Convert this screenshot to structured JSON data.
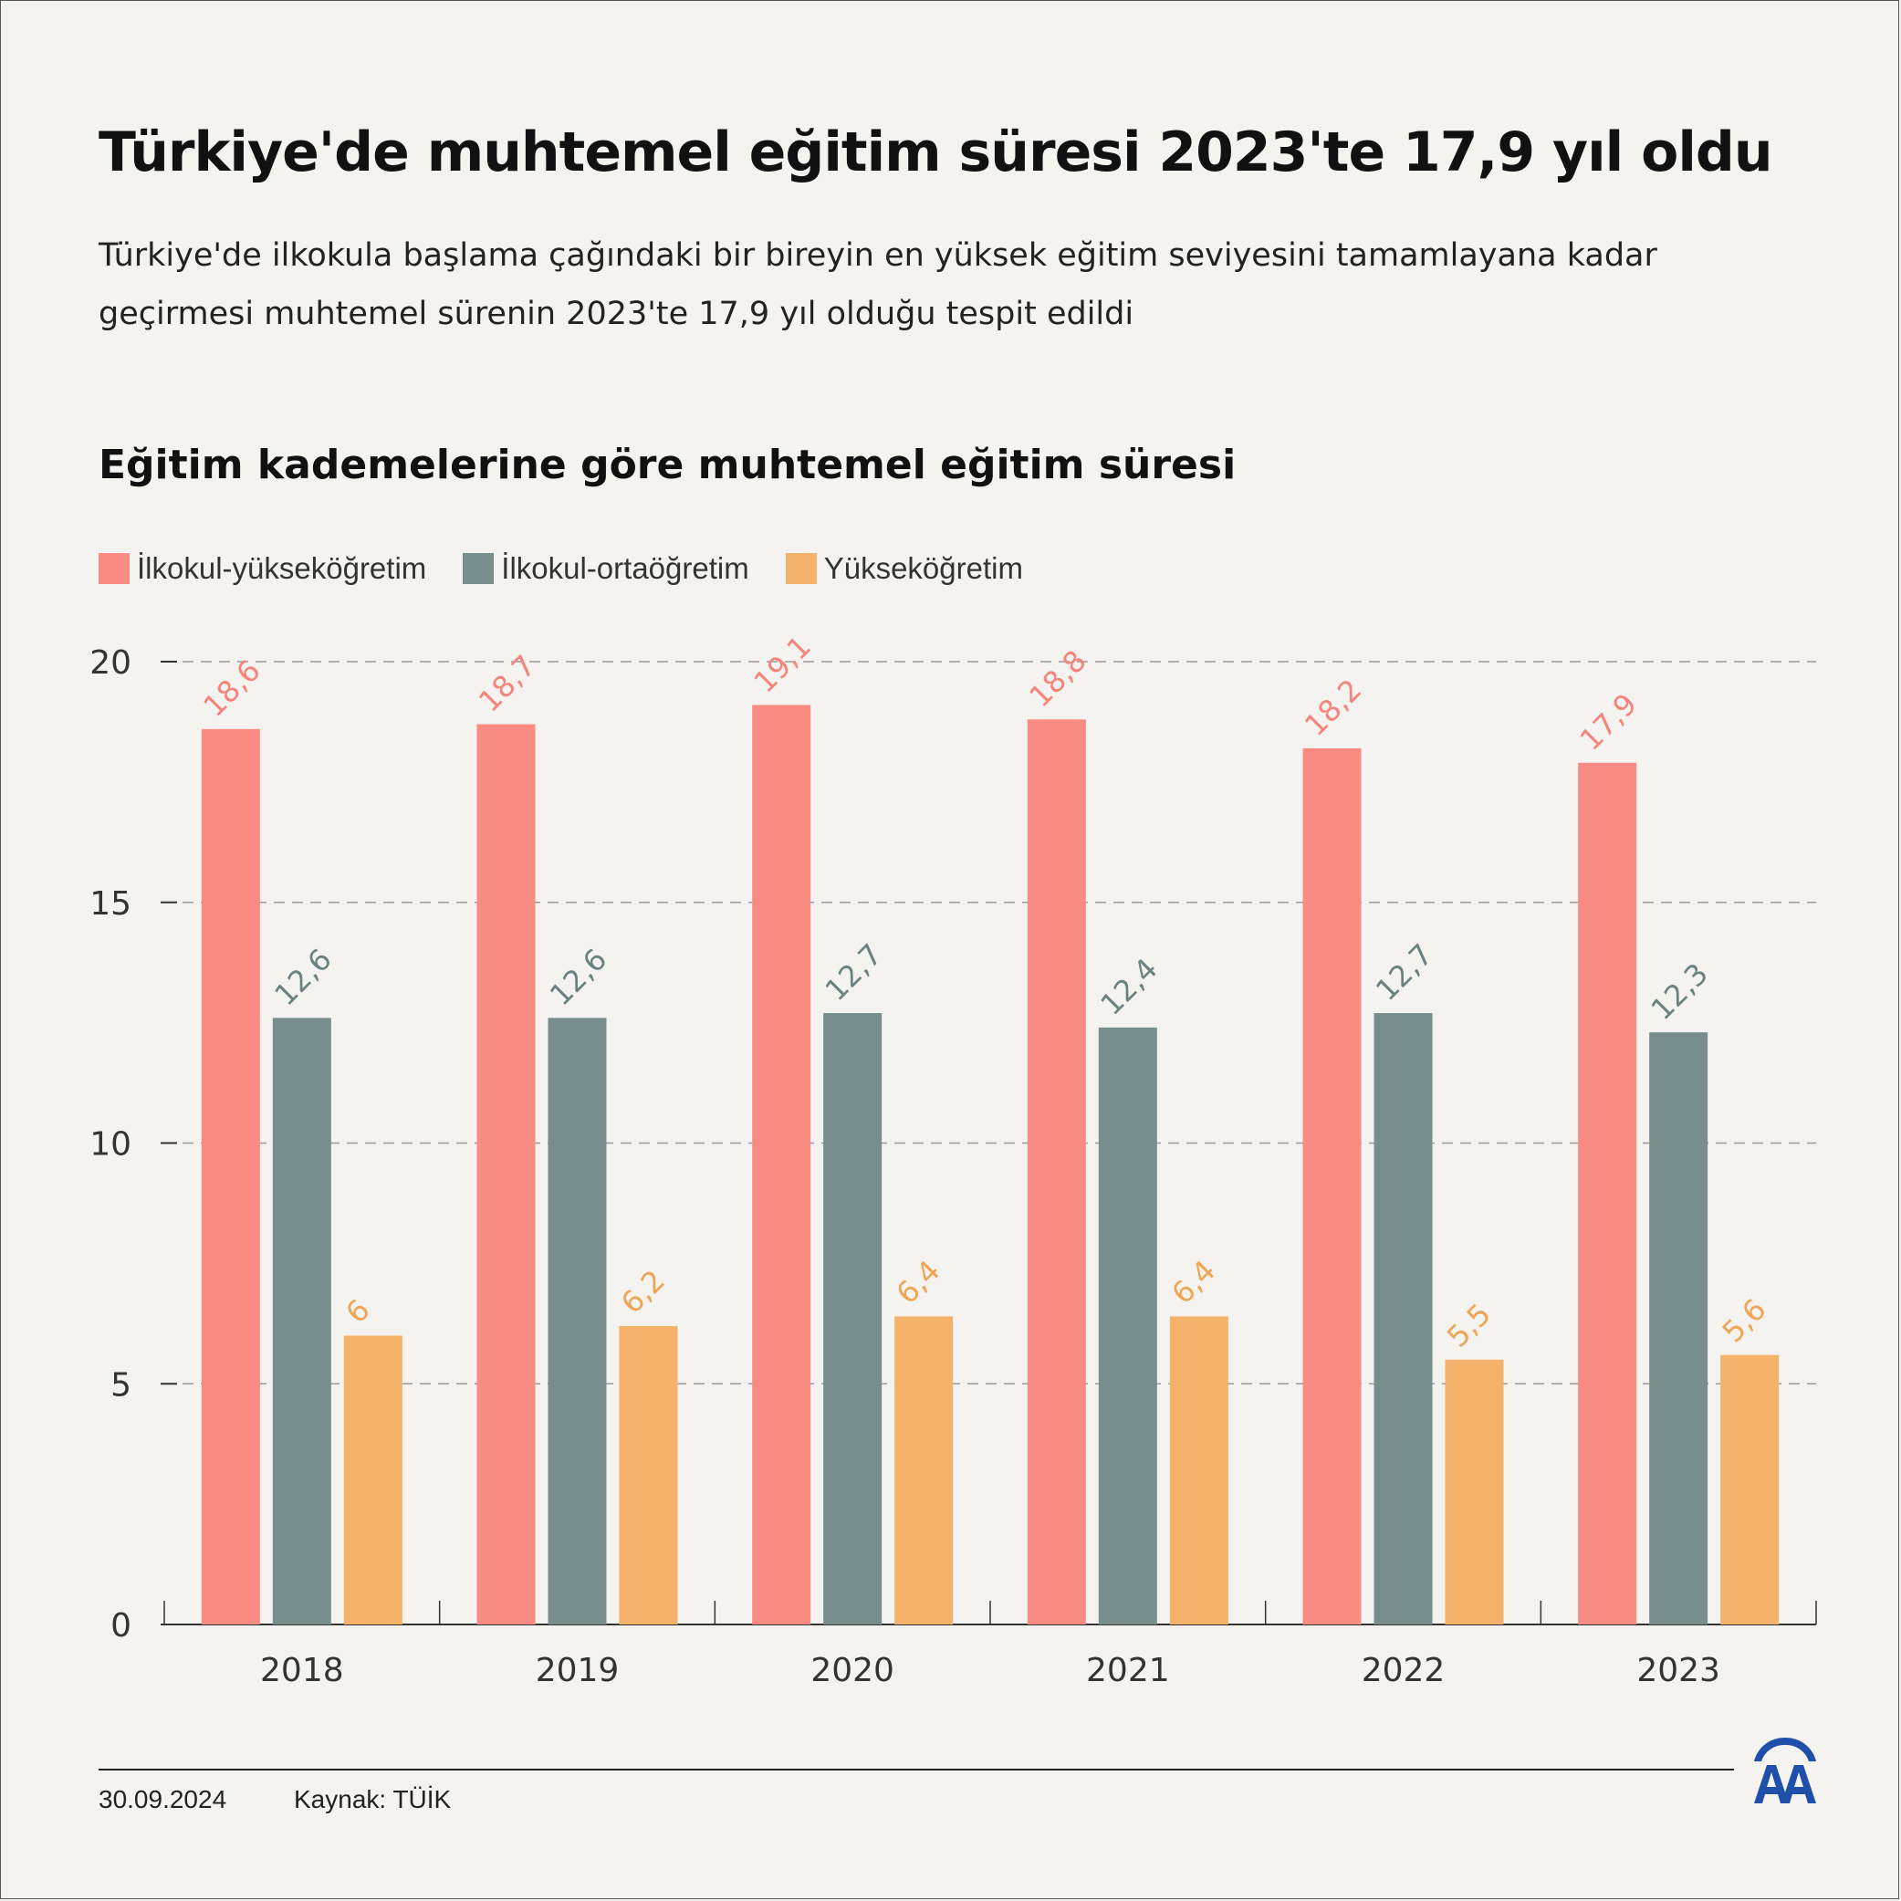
{
  "title": "Türkiye'de muhtemel eğitim süresi 2023'te 17,9 yıl oldu",
  "subtitle": "Türkiye'de ilkokula başlama çağındaki bir bireyin en yüksek eğitim seviyesini tamamlayana kadar geçirmesi muhtemel sürenin 2023'te 17,9 yıl olduğu tespit edildi",
  "chart_title": "Eğitim kademelerine göre muhtemel eğitim süresi",
  "footer": {
    "date": "30.09.2024",
    "source": "Kaynak: TÜİK"
  },
  "logo": {
    "name": "AA-logo",
    "color": "#1f4fa8",
    "text": "AA"
  },
  "colors": {
    "background": "#f5f3ef",
    "grid": "#999999",
    "axis": "#333333"
  },
  "chart_data": {
    "type": "bar",
    "title": "Eğitim kademelerine göre muhtemel eğitim süresi",
    "categories": [
      "2018",
      "2019",
      "2020",
      "2021",
      "2022",
      "2023"
    ],
    "series": [
      {
        "name": "İlkokul-yükseköğretim",
        "color": "#fa8b84",
        "label_color": "#f4847c",
        "values": [
          18.6,
          18.7,
          19.1,
          18.8,
          18.2,
          17.9
        ],
        "labels": [
          "18,6",
          "18,7",
          "19,1",
          "18,8",
          "18,2",
          "17,9"
        ]
      },
      {
        "name": "İlkokul-ortaöğretim",
        "color": "#778e8d",
        "label_color": "#6b8281",
        "values": [
          12.6,
          12.6,
          12.7,
          12.4,
          12.7,
          12.3
        ],
        "labels": [
          "12,6",
          "12,6",
          "12,7",
          "12,4",
          "12,7",
          "12,3"
        ]
      },
      {
        "name": "Yükseköğretim",
        "color": "#f4b26a",
        "label_color": "#efa555",
        "values": [
          6,
          6.2,
          6.4,
          6.4,
          5.5,
          5.6
        ],
        "labels": [
          "6",
          "6,2",
          "6,4",
          "6,4",
          "5,5",
          "5,6"
        ]
      }
    ],
    "ylim": [
      0,
      20
    ],
    "yticks": [
      0,
      5,
      10,
      15,
      20
    ],
    "grid": true,
    "grid_style": "dashed",
    "legend_position": "top-left",
    "xlabel": "",
    "ylabel": ""
  }
}
